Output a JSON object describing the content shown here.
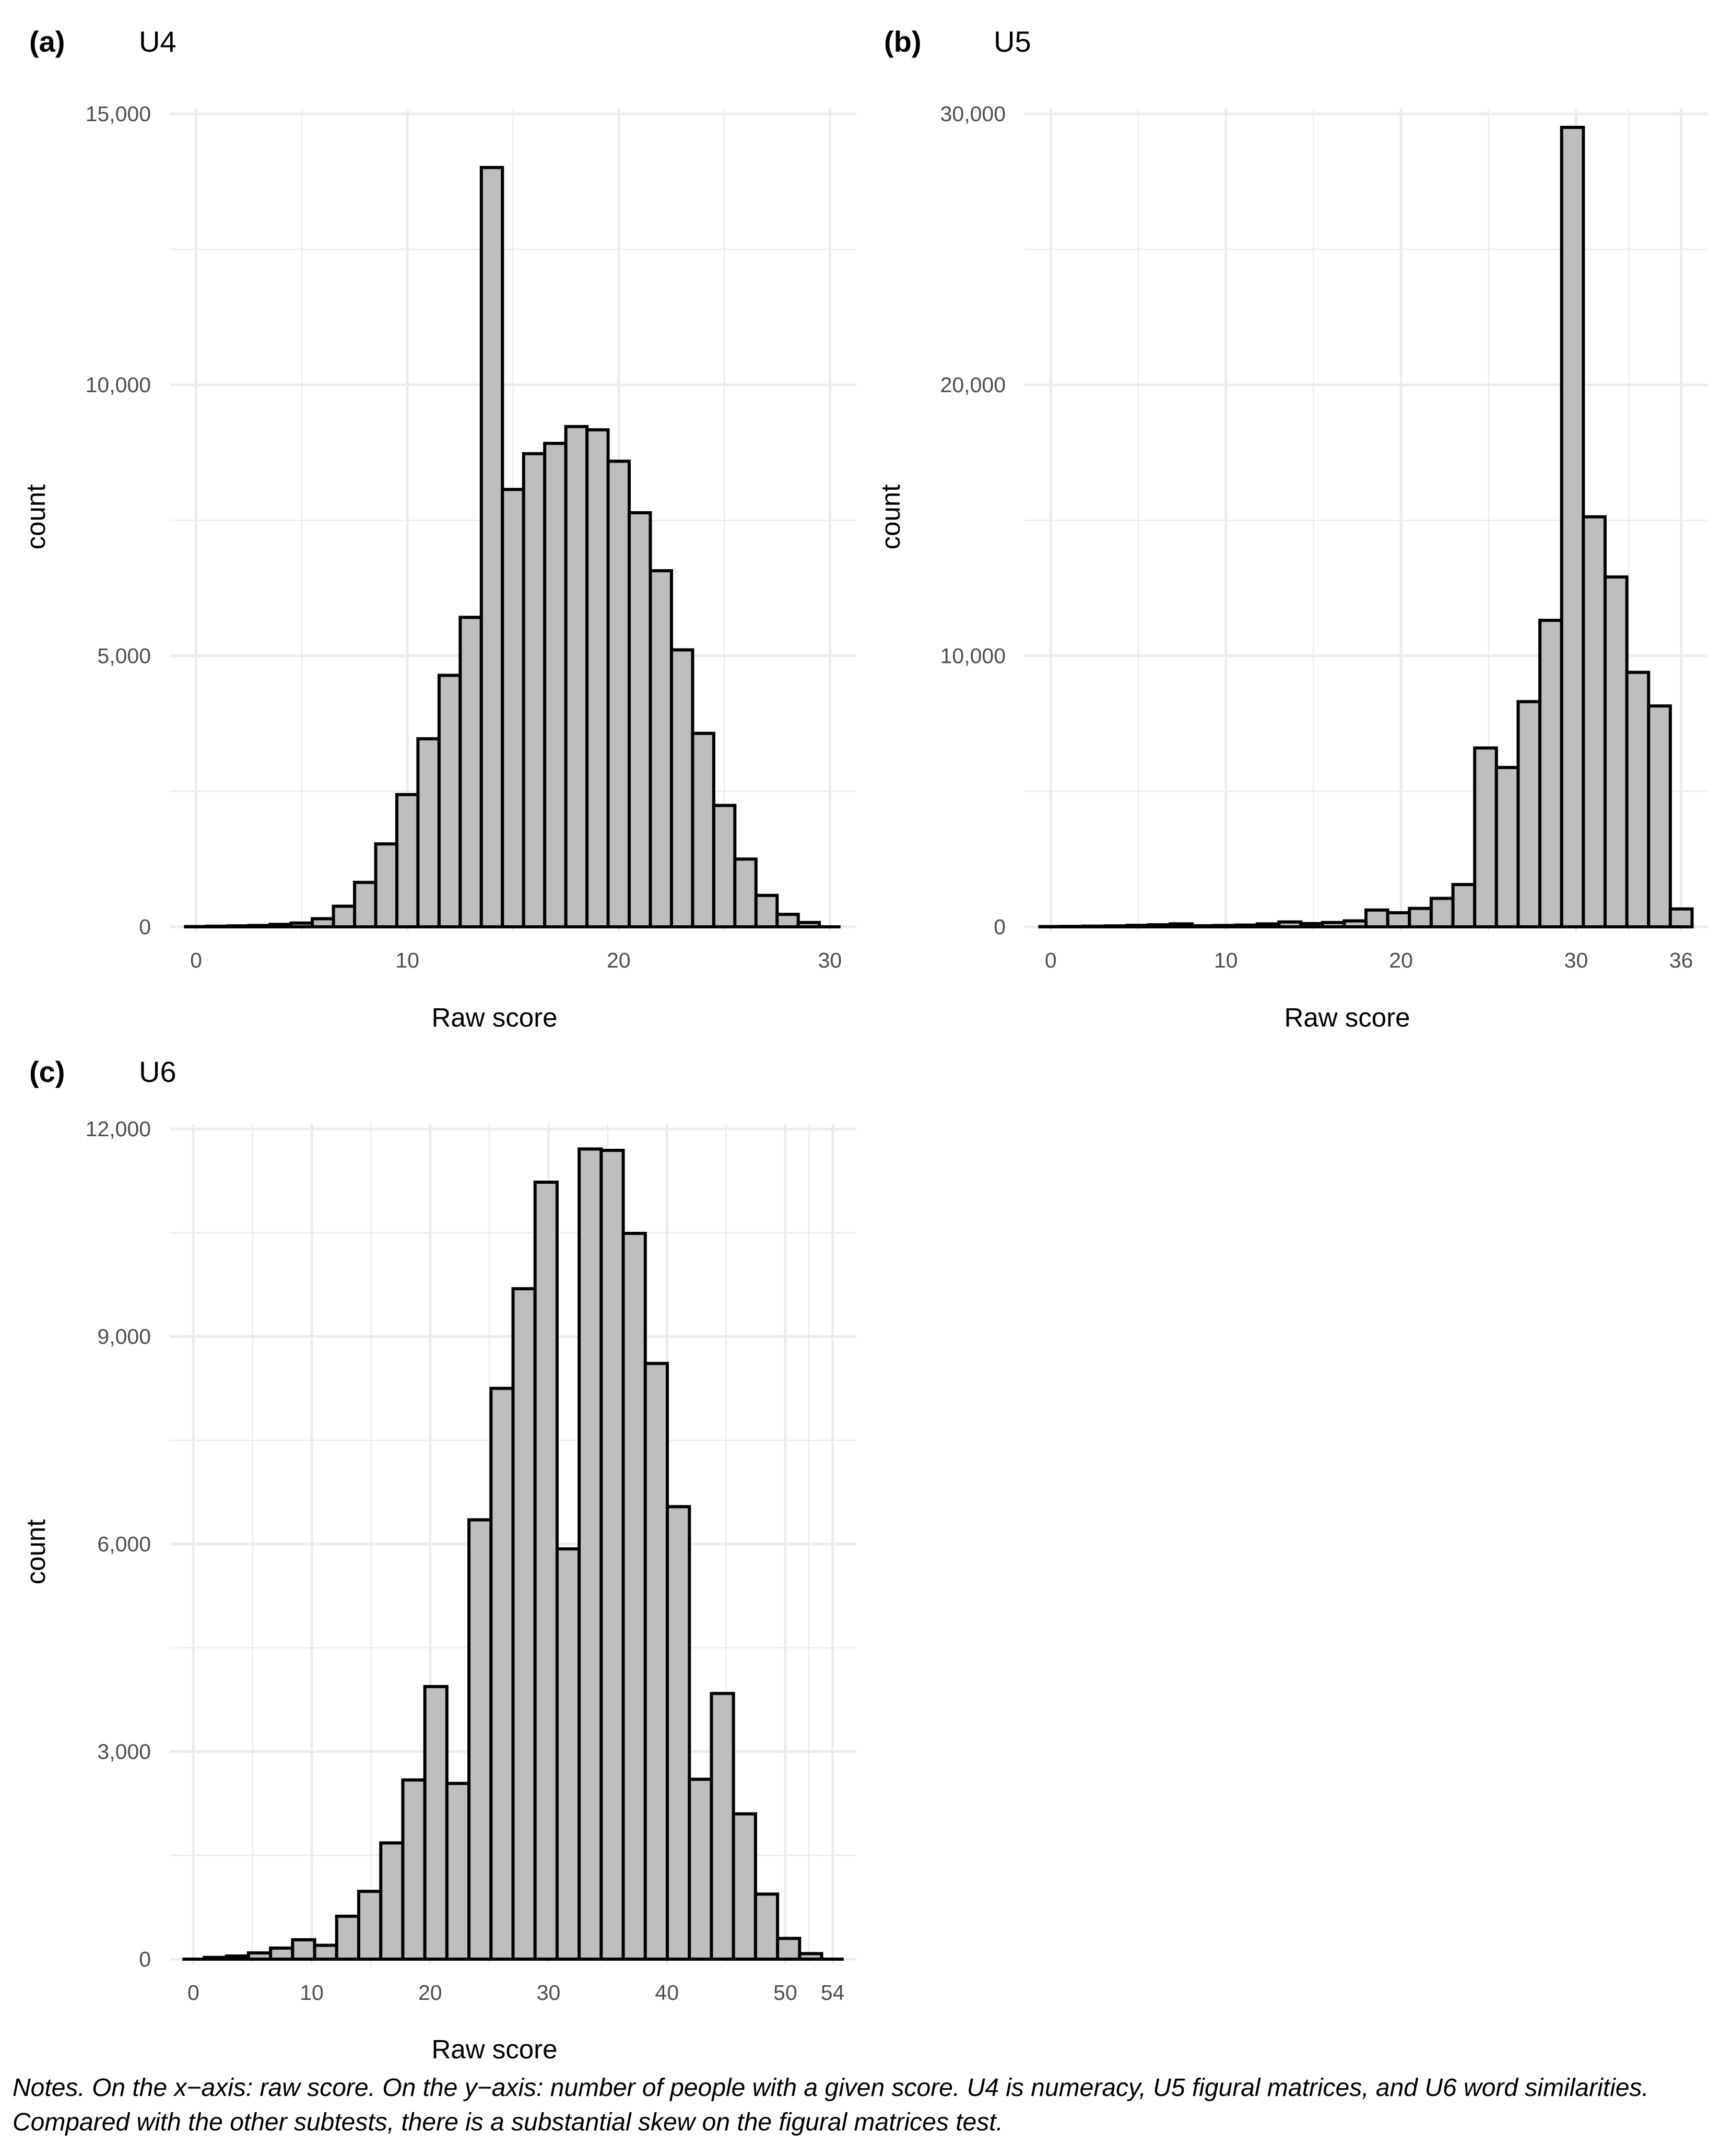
{
  "notes": "Notes. On the x−axis: raw score. On the y−axis: number of people with a given score. U4 is numeracy, U5 figural matrices, and U6 word similarities. Compared with the other subtests, there is a substantial skew on the figural matrices test.",
  "colors": {
    "bar_fill": "#bebebe",
    "bar_stroke": "#000000",
    "grid": "#ebebeb",
    "tick_text": "#4d4d4d"
  },
  "chart_data": [
    {
      "type": "bar",
      "panel_label": "(a)",
      "title": "U4",
      "xlabel": "Raw score",
      "ylabel": "count",
      "xlim": [
        -1.25,
        31.25
      ],
      "ylim": [
        0,
        15000
      ],
      "x_ticks": [
        0,
        10,
        20,
        30
      ],
      "x_tick_labels": [
        "0",
        "10",
        "20",
        "30"
      ],
      "y_ticks": [
        0,
        5000,
        10000,
        15000
      ],
      "y_tick_labels": [
        "0",
        "5,000",
        "10,000",
        "15,000"
      ],
      "bin_width": 1.0,
      "x": [
        0,
        1,
        2,
        3,
        4,
        5,
        6,
        7,
        8,
        9,
        10,
        11,
        12,
        13,
        14,
        15,
        16,
        17,
        18,
        19,
        20,
        21,
        22,
        23,
        24,
        25,
        26,
        27,
        28,
        29,
        30
      ],
      "values": [
        5,
        12,
        18,
        25,
        45,
        70,
        150,
        380,
        820,
        1530,
        2440,
        3470,
        4640,
        5710,
        14010,
        8070,
        8730,
        8920,
        9230,
        9170,
        8590,
        7640,
        6570,
        5110,
        3570,
        2240,
        1250,
        580,
        230,
        80,
        0
      ]
    },
    {
      "type": "bar",
      "panel_label": "(b)",
      "title": "U5",
      "xlabel": "Raw score",
      "ylabel": "count",
      "xlim": [
        -1.5,
        37.5
      ],
      "ylim": [
        0,
        30000
      ],
      "x_ticks": [
        0,
        10,
        20,
        30,
        36
      ],
      "x_tick_labels": [
        "0",
        "10",
        "20",
        "30",
        "36"
      ],
      "y_ticks": [
        0,
        10000,
        20000,
        30000
      ],
      "y_tick_labels": [
        "0",
        "10,000",
        "20,000",
        "30,000"
      ],
      "bin_width": 1.2414,
      "x": [
        0.0,
        1.241,
        2.483,
        3.724,
        4.966,
        6.207,
        7.448,
        8.69,
        9.931,
        11.172,
        12.414,
        13.655,
        14.897,
        16.138,
        17.379,
        18.621,
        19.862,
        21.103,
        22.345,
        23.586,
        24.828,
        26.069,
        27.31,
        28.552,
        29.793,
        31.034,
        32.276,
        33.517,
        34.759,
        36.0
      ],
      "values": [
        10,
        15,
        25,
        35,
        55,
        75,
        110,
        40,
        50,
        65,
        110,
        180,
        120,
        160,
        220,
        620,
        520,
        680,
        1050,
        1560,
        6600,
        5880,
        8310,
        11310,
        29500,
        15130,
        12910,
        9390,
        8150,
        660
      ]
    },
    {
      "type": "bar",
      "panel_label": "(c)",
      "title": "U6",
      "xlabel": "Raw score",
      "ylabel": "count",
      "xlim": [
        -2.0,
        56.0
      ],
      "ylim": [
        0,
        12000
      ],
      "x_ticks": [
        0,
        10,
        20,
        30,
        40,
        50,
        54
      ],
      "x_tick_labels": [
        "0",
        "10",
        "20",
        "30",
        "40",
        "50",
        "54"
      ],
      "y_ticks": [
        0,
        3000,
        6000,
        9000,
        12000
      ],
      "y_tick_labels": [
        "0",
        "3,000",
        "6,000",
        "9,000",
        "12,000"
      ],
      "bin_width": 1.8621,
      "x": [
        0.0,
        1.862,
        3.724,
        5.586,
        7.448,
        9.31,
        11.172,
        13.034,
        14.897,
        16.759,
        18.621,
        20.483,
        22.345,
        24.207,
        26.069,
        27.931,
        29.793,
        31.655,
        33.517,
        35.379,
        37.241,
        39.103,
        40.966,
        42.828,
        44.69,
        46.552,
        48.414,
        50.276,
        52.138,
        54.0
      ],
      "values": [
        0,
        25,
        45,
        90,
        160,
        280,
        200,
        620,
        980,
        1680,
        2590,
        3940,
        2540,
        6350,
        8250,
        9690,
        11230,
        5930,
        11710,
        11690,
        10490,
        8610,
        6540,
        2600,
        3840,
        2100,
        940,
        300,
        80,
        0
      ]
    }
  ]
}
